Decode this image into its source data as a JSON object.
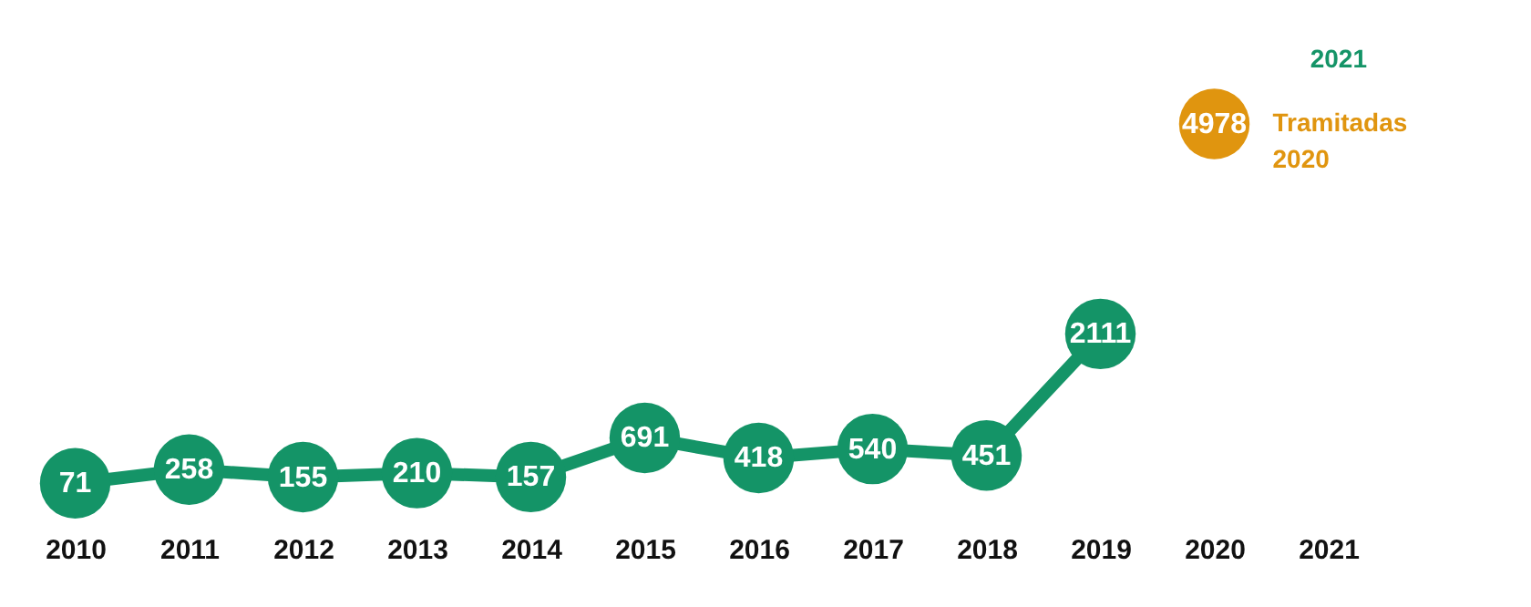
{
  "chart_data": {
    "type": "line",
    "categories": [
      "2010",
      "2011",
      "2012",
      "2013",
      "2014",
      "2015",
      "2016",
      "2017",
      "2018",
      "2019",
      "2020",
      "2021"
    ],
    "series": [
      {
        "color": "#149467",
        "values": [
          71,
          258,
          155,
          210,
          157,
          691,
          418,
          540,
          451,
          2111,
          null,
          null
        ]
      },
      {
        "name": "Tramitadas 2020",
        "color": "#e0950f",
        "values": [
          null,
          null,
          null,
          null,
          null,
          null,
          null,
          null,
          null,
          null,
          4978,
          null
        ]
      }
    ],
    "data_labels": true,
    "marker": "circle",
    "grid": false,
    "annotations": [
      "2021"
    ]
  }
}
